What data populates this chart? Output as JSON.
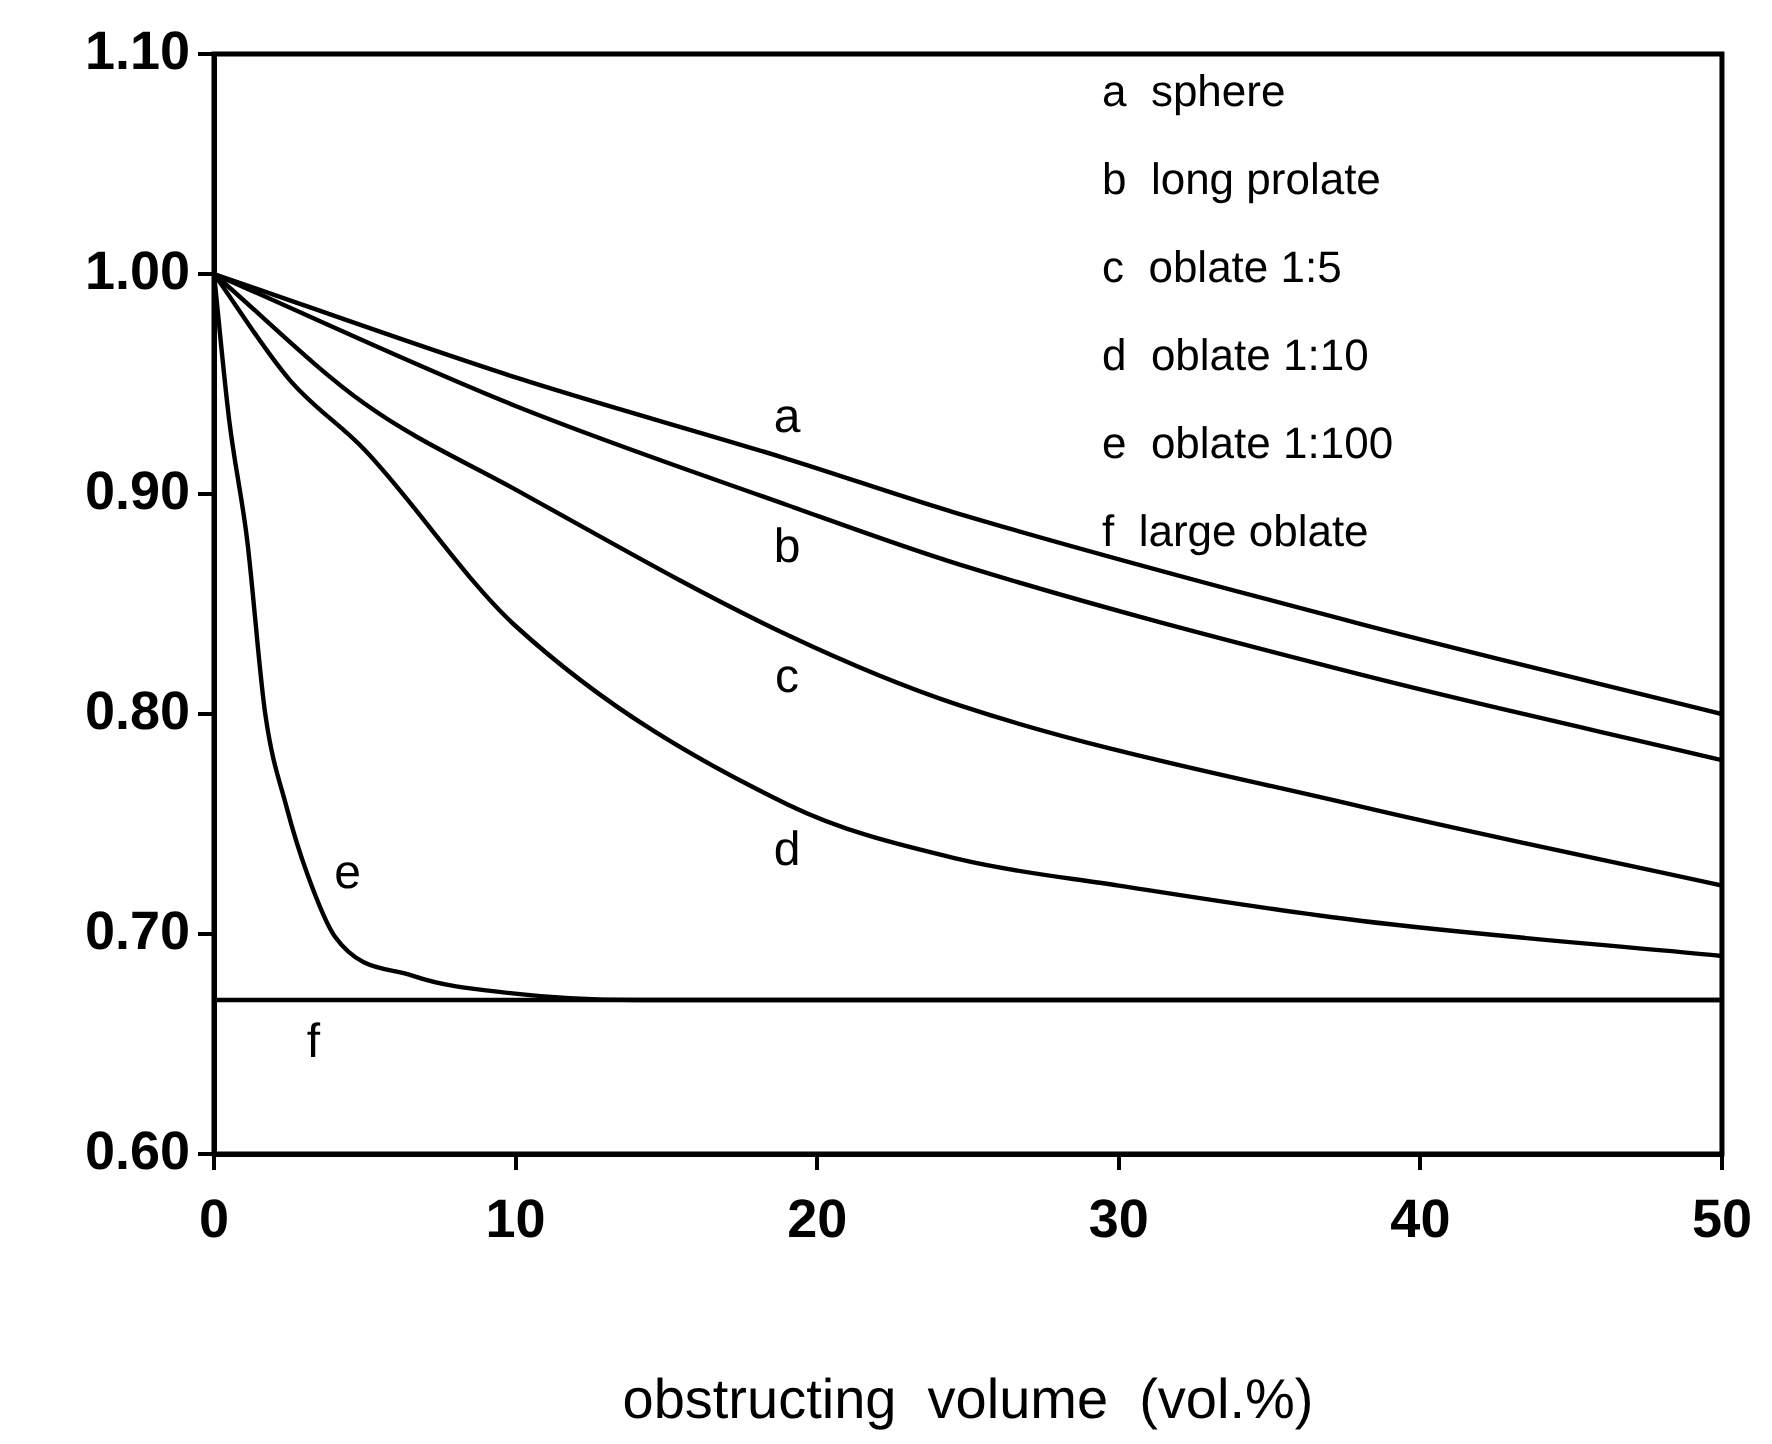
{
  "chart_data": {
    "type": "line",
    "xlabel": "obstructing  volume  (vol.%)",
    "xlim": [
      0,
      50
    ],
    "xticks": [
      0,
      10,
      20,
      30,
      40,
      50
    ],
    "ylim": [
      0.6,
      1.1
    ],
    "yticks": [
      {
        "value": 0.6,
        "label": "0.60"
      },
      {
        "value": 0.7,
        "label": "0.70"
      },
      {
        "value": 0.8,
        "label": "0.80"
      },
      {
        "value": 0.9,
        "label": "0.90"
      },
      {
        "value": 1.0,
        "label": "1.00"
      },
      {
        "value": 1.1,
        "label": "1.10"
      }
    ],
    "grid": false,
    "marker": "none",
    "line_style": "solid",
    "series": [
      {
        "name": "a",
        "color": "#000000",
        "x": [
          0,
          10,
          19,
          24.7,
          38,
          50
        ],
        "values": [
          1.0,
          0.953,
          0.916,
          0.891,
          0.841,
          0.8
        ]
      },
      {
        "name": "b",
        "color": "#000000",
        "x": [
          0,
          10,
          19,
          24.7,
          38,
          50
        ],
        "values": [
          1.0,
          0.94,
          0.895,
          0.868,
          0.818,
          0.779
        ]
      },
      {
        "name": "c",
        "color": "#000000",
        "x": [
          0,
          5,
          10,
          19,
          24.7,
          38,
          50
        ],
        "values": [
          1.0,
          0.941,
          0.902,
          0.836,
          0.804,
          0.758,
          0.722
        ]
      },
      {
        "name": "d",
        "color": "#000000",
        "x": [
          0,
          2.5,
          5,
          10,
          19,
          24.7,
          30,
          38,
          50
        ],
        "values": [
          1.0,
          0.952,
          0.92,
          0.84,
          0.759,
          0.734,
          0.722,
          0.706,
          0.69
        ]
      },
      {
        "name": "e",
        "color": "#000000",
        "x": [
          0,
          0.5,
          1.1,
          1.7,
          2.4,
          3.1,
          4,
          6.6,
          9.9,
          14,
          50
        ],
        "values": [
          1.0,
          0.934,
          0.879,
          0.8,
          0.758,
          0.727,
          0.699,
          0.681,
          0.673,
          0.67,
          0.67
        ]
      },
      {
        "name": "f",
        "color": "#000000",
        "x": [
          0,
          3.3,
          50
        ],
        "values": [
          0.67,
          0.67,
          0.67
        ]
      }
    ],
    "annotations": [
      "a  sphere",
      "b  long prolate",
      "c  oblate 1:5",
      "d  oblate 1:10",
      "e  oblate 1:100",
      "f  large oblate"
    ]
  }
}
